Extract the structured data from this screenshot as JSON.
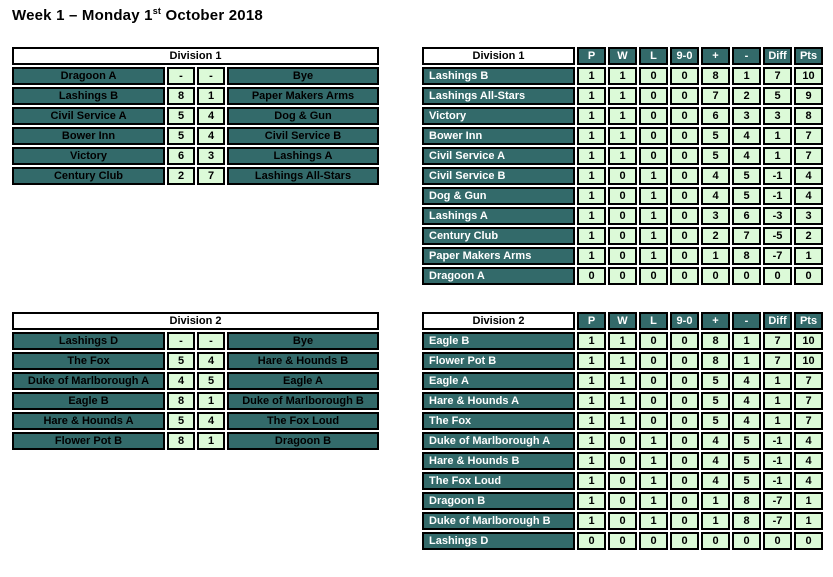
{
  "title": {
    "prefix": "Week 1 – Monday 1",
    "ordinal": "st",
    "suffix": " October 2018"
  },
  "colors": {
    "teal": "#336A6A",
    "light_green": "#DCFAD8",
    "border": "#000000",
    "page_bg": "#FFFFFF"
  },
  "fixtures": [
    {
      "division": "Division 1",
      "matches": [
        {
          "home": "Dragoon A",
          "home_score": "-",
          "away_score": "-",
          "away": "Bye"
        },
        {
          "home": "Lashings B",
          "home_score": "8",
          "away_score": "1",
          "away": "Paper Makers Arms"
        },
        {
          "home": "Civil Service A",
          "home_score": "5",
          "away_score": "4",
          "away": "Dog & Gun"
        },
        {
          "home": "Bower Inn",
          "home_score": "5",
          "away_score": "4",
          "away": "Civil Service B"
        },
        {
          "home": "Victory",
          "home_score": "6",
          "away_score": "3",
          "away": "Lashings A"
        },
        {
          "home": "Century Club",
          "home_score": "2",
          "away_score": "7",
          "away": "Lashings All-Stars"
        }
      ]
    },
    {
      "division": "Division 2",
      "matches": [
        {
          "home": "Lashings D",
          "home_score": "-",
          "away_score": "-",
          "away": "Bye"
        },
        {
          "home": "The Fox",
          "home_score": "5",
          "away_score": "4",
          "away": "Hare & Hounds B"
        },
        {
          "home": "Duke of Marlborough A",
          "home_score": "4",
          "away_score": "5",
          "away": "Eagle A"
        },
        {
          "home": "Eagle B",
          "home_score": "8",
          "away_score": "1",
          "away": "Duke of Marlborough B"
        },
        {
          "home": "Hare & Hounds A",
          "home_score": "5",
          "away_score": "4",
          "away": "The Fox Loud"
        },
        {
          "home": "Flower Pot B",
          "home_score": "8",
          "away_score": "1",
          "away": "Dragoon B"
        }
      ]
    }
  ],
  "standings": [
    {
      "division": "Division 1",
      "columns": [
        "P",
        "W",
        "L",
        "9-0",
        "+",
        "-",
        "Diff",
        "Pts"
      ],
      "rows": [
        {
          "team": "Lashings B",
          "values": [
            1,
            1,
            0,
            0,
            8,
            1,
            7,
            10
          ]
        },
        {
          "team": "Lashings All-Stars",
          "values": [
            1,
            1,
            0,
            0,
            7,
            2,
            5,
            9
          ]
        },
        {
          "team": "Victory",
          "values": [
            1,
            1,
            0,
            0,
            6,
            3,
            3,
            8
          ]
        },
        {
          "team": "Bower Inn",
          "values": [
            1,
            1,
            0,
            0,
            5,
            4,
            1,
            7
          ]
        },
        {
          "team": "Civil Service A",
          "values": [
            1,
            1,
            0,
            0,
            5,
            4,
            1,
            7
          ]
        },
        {
          "team": "Civil Service B",
          "values": [
            1,
            0,
            1,
            0,
            4,
            5,
            -1,
            4
          ]
        },
        {
          "team": "Dog & Gun",
          "values": [
            1,
            0,
            1,
            0,
            4,
            5,
            -1,
            4
          ]
        },
        {
          "team": "Lashings A",
          "values": [
            1,
            0,
            1,
            0,
            3,
            6,
            -3,
            3
          ]
        },
        {
          "team": "Century Club",
          "values": [
            1,
            0,
            1,
            0,
            2,
            7,
            -5,
            2
          ]
        },
        {
          "team": "Paper Makers Arms",
          "values": [
            1,
            0,
            1,
            0,
            1,
            8,
            -7,
            1
          ]
        },
        {
          "team": "Dragoon A",
          "values": [
            0,
            0,
            0,
            0,
            0,
            0,
            0,
            0
          ]
        }
      ]
    },
    {
      "division": "Division 2",
      "columns": [
        "P",
        "W",
        "L",
        "9-0",
        "+",
        "-",
        "Diff",
        "Pts"
      ],
      "rows": [
        {
          "team": "Eagle B",
          "values": [
            1,
            1,
            0,
            0,
            8,
            1,
            7,
            10
          ]
        },
        {
          "team": "Flower Pot B",
          "values": [
            1,
            1,
            0,
            0,
            8,
            1,
            7,
            10
          ]
        },
        {
          "team": "Eagle A",
          "values": [
            1,
            1,
            0,
            0,
            5,
            4,
            1,
            7
          ]
        },
        {
          "team": "Hare & Hounds A",
          "values": [
            1,
            1,
            0,
            0,
            5,
            4,
            1,
            7
          ]
        },
        {
          "team": "The Fox",
          "values": [
            1,
            1,
            0,
            0,
            5,
            4,
            1,
            7
          ]
        },
        {
          "team": "Duke of Marlborough A",
          "values": [
            1,
            0,
            1,
            0,
            4,
            5,
            -1,
            4
          ]
        },
        {
          "team": "Hare & Hounds B",
          "values": [
            1,
            0,
            1,
            0,
            4,
            5,
            -1,
            4
          ]
        },
        {
          "team": "The Fox Loud",
          "values": [
            1,
            0,
            1,
            0,
            4,
            5,
            -1,
            4
          ]
        },
        {
          "team": "Dragoon B",
          "values": [
            1,
            0,
            1,
            0,
            1,
            8,
            -7,
            1
          ]
        },
        {
          "team": "Duke of Marlborough B",
          "values": [
            1,
            0,
            1,
            0,
            1,
            8,
            -7,
            1
          ]
        },
        {
          "team": "Lashings D",
          "values": [
            0,
            0,
            0,
            0,
            0,
            0,
            0,
            0
          ]
        }
      ]
    }
  ]
}
